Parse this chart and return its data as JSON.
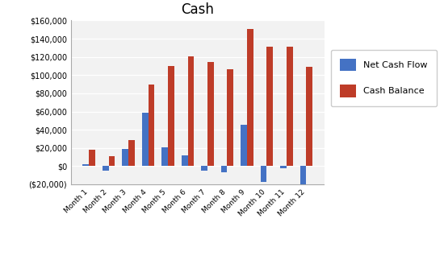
{
  "title": "Cash",
  "categories": [
    "Month 1",
    "Month 2",
    "Month 3",
    "Month 4",
    "Month 5",
    "Month 6",
    "Month 7",
    "Month 8",
    "Month 9",
    "Month 10",
    "Month 11",
    "Month 12"
  ],
  "net_cash_flow": [
    2000,
    -5000,
    19000,
    59000,
    21000,
    12000,
    -5000,
    -7000,
    45000,
    -17000,
    -2000,
    -20000
  ],
  "cash_balance": [
    18000,
    11000,
    29000,
    90000,
    110000,
    121000,
    114000,
    106000,
    151000,
    131000,
    131000,
    109000
  ],
  "bar_color_net": "#4472C4",
  "bar_color_balance": "#BE3C28",
  "legend_labels": [
    "Net Cash Flow",
    "Cash Balance"
  ],
  "ylim": [
    -20000,
    160000
  ],
  "yticks": [
    -20000,
    0,
    20000,
    40000,
    60000,
    80000,
    100000,
    120000,
    140000,
    160000
  ],
  "ytick_labels": [
    "($20,000)",
    "$0",
    "$20,000",
    "$40,000",
    "$60,000",
    "$80,000",
    "$100,000",
    "$120,000",
    "$140,000",
    "$160,000"
  ],
  "background_color": "#ffffff",
  "plot_bg_color": "#f2f2f2",
  "grid_color": "#ffffff"
}
